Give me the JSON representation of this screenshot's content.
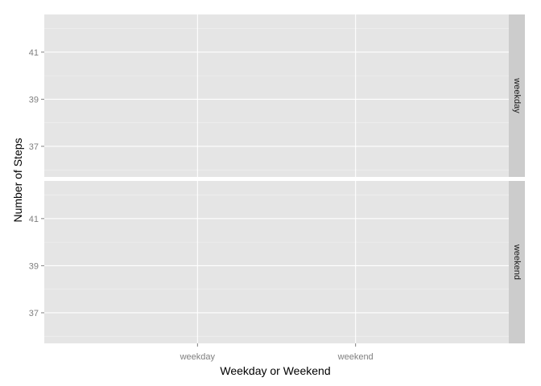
{
  "chart_data": {
    "type": "scatter",
    "facet": "rows",
    "xlabel": "Weekday or Weekend",
    "ylabel": "Number of Steps",
    "x_categories": [
      "weekday",
      "weekend"
    ],
    "ylim": [
      35.7,
      42.6
    ],
    "y_ticks": [
      37,
      39,
      41
    ],
    "grid": true,
    "panels": [
      {
        "strip": "weekday",
        "points": []
      },
      {
        "strip": "weekend",
        "points": []
      }
    ],
    "colors": {
      "panel_bg": "#e5e5e5",
      "grid_major": "#ffffff",
      "grid_minor": "#f2f2f2",
      "strip_bg": "#cccccc",
      "tick": "#7f7f7f"
    }
  }
}
